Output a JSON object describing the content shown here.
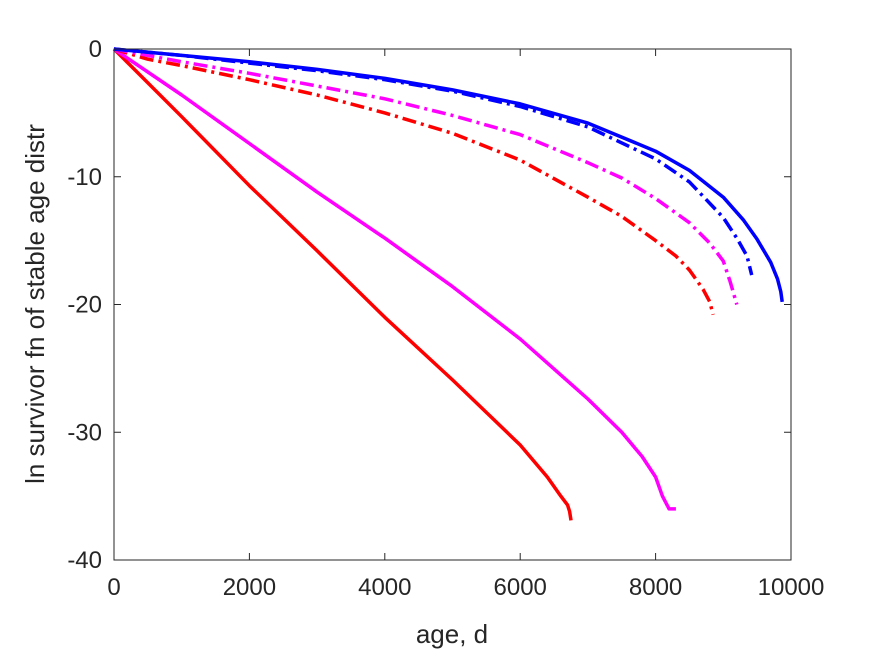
{
  "chart_data": {
    "type": "line",
    "title": "",
    "xlabel": "age, d",
    "ylabel": "ln survivor fn of stable age distr",
    "xlim": [
      0,
      10000
    ],
    "ylim": [
      -40,
      0
    ],
    "xticks": [
      0,
      2000,
      4000,
      6000,
      8000,
      10000
    ],
    "yticks": [
      0,
      -10,
      -20,
      -30,
      -40
    ],
    "grid": false,
    "legend": "none",
    "series": [
      {
        "color": "#ff0000",
        "style": "solid",
        "x": [
          0,
          1000,
          2000,
          3000,
          4000,
          5000,
          6000,
          6400,
          6600,
          6700,
          6730,
          6750
        ],
        "y": [
          0,
          -5.3,
          -10.7,
          -15.8,
          -21.0,
          -25.9,
          -31.0,
          -33.5,
          -35.0,
          -35.7,
          -36.2,
          -36.9
        ]
      },
      {
        "color": "#ff00ff",
        "style": "solid",
        "x": [
          0,
          1000,
          2000,
          3000,
          4000,
          5000,
          6000,
          7000,
          7500,
          7800,
          8000,
          8100,
          8200,
          8300
        ],
        "y": [
          0,
          -3.6,
          -7.4,
          -11.2,
          -14.8,
          -18.6,
          -22.7,
          -27.4,
          -30.0,
          -31.9,
          -33.5,
          -35.0,
          -36.0,
          -36.0
        ]
      },
      {
        "color": "#ff0000",
        "style": "dashdot",
        "x": [
          0,
          500,
          1000,
          2000,
          3000,
          4000,
          5000,
          6000,
          7000,
          7500,
          8000,
          8300,
          8500,
          8700,
          8800,
          8850
        ],
        "y": [
          0,
          -0.8,
          -1.3,
          -2.4,
          -3.6,
          -5.0,
          -6.6,
          -8.7,
          -11.6,
          -13.1,
          -15.0,
          -16.2,
          -17.3,
          -18.8,
          -19.8,
          -20.8
        ]
      },
      {
        "color": "#ff00ff",
        "style": "dashdot",
        "x": [
          0,
          500,
          1000,
          2000,
          3000,
          4000,
          5000,
          6000,
          7000,
          7500,
          8000,
          8500,
          8800,
          9000,
          9100,
          9200
        ],
        "y": [
          0,
          -0.5,
          -1.0,
          -1.9,
          -2.9,
          -3.9,
          -5.2,
          -6.7,
          -8.9,
          -10.1,
          -11.7,
          -13.6,
          -15.2,
          -16.6,
          -18.2,
          -20.0
        ]
      },
      {
        "color": "#0000ff",
        "style": "dashdot",
        "x": [
          0,
          1000,
          2000,
          3000,
          4000,
          5000,
          6000,
          7000,
          8000,
          8500,
          9000,
          9200,
          9350,
          9420
        ],
        "y": [
          0,
          -0.5,
          -1.1,
          -1.7,
          -2.4,
          -3.3,
          -4.5,
          -6.1,
          -8.6,
          -10.4,
          -13.2,
          -14.8,
          -16.2,
          -17.7
        ]
      },
      {
        "color": "#0000ff",
        "style": "solid",
        "x": [
          0,
          1000,
          2000,
          3000,
          4000,
          5000,
          6000,
          7000,
          8000,
          8500,
          9000,
          9300,
          9500,
          9700,
          9800,
          9850,
          9870
        ],
        "y": [
          0,
          -0.5,
          -1.0,
          -1.6,
          -2.3,
          -3.2,
          -4.3,
          -5.8,
          -8.0,
          -9.5,
          -11.6,
          -13.4,
          -14.9,
          -16.7,
          -18.0,
          -19.0,
          -19.8
        ]
      }
    ]
  }
}
